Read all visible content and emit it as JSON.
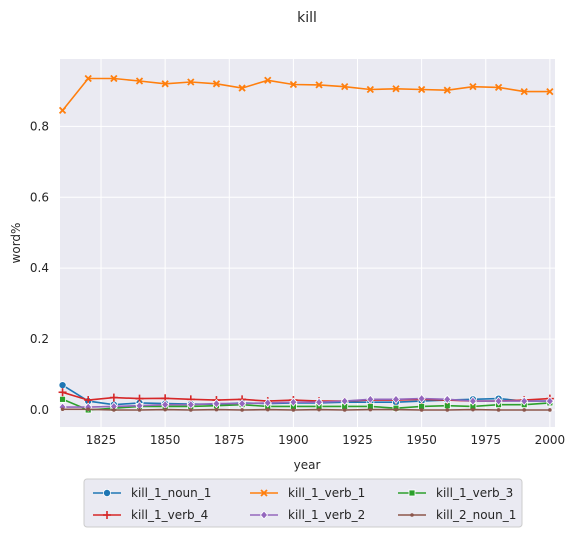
{
  "chart_data": {
    "type": "line",
    "title": "kill",
    "xlabel": "year",
    "ylabel": "word%",
    "xlim": [
      1809,
      2002
    ],
    "ylim": [
      -0.048,
      0.99
    ],
    "xticks": [
      1825,
      1850,
      1875,
      1900,
      1925,
      1950,
      1975,
      2000
    ],
    "yticks": [
      0.0,
      0.2,
      0.4,
      0.6,
      0.8
    ],
    "ytick_labels": [
      "0.0",
      "0.2",
      "0.4",
      "0.6",
      "0.8"
    ],
    "grid": true,
    "legend_position": "bottom-center",
    "x": [
      1810,
      1820,
      1830,
      1840,
      1850,
      1860,
      1870,
      1880,
      1890,
      1900,
      1910,
      1920,
      1930,
      1940,
      1950,
      1960,
      1970,
      1980,
      1990,
      2000
    ],
    "series": [
      {
        "name": "kill_1_noun_1",
        "color": "#1f77b4",
        "marker": "circle",
        "values": [
          0.07,
          0.025,
          0.015,
          0.02,
          0.018,
          0.017,
          0.016,
          0.02,
          0.018,
          0.02,
          0.02,
          0.022,
          0.022,
          0.022,
          0.025,
          0.028,
          0.03,
          0.032,
          0.025,
          0.025
        ]
      },
      {
        "name": "kill_1_verb_1",
        "color": "#ff7f0e",
        "marker": "x",
        "values": [
          0.845,
          0.935,
          0.935,
          0.928,
          0.92,
          0.925,
          0.92,
          0.908,
          0.93,
          0.918,
          0.917,
          0.912,
          0.904,
          0.906,
          0.904,
          0.902,
          0.912,
          0.91,
          0.898,
          0.898
        ]
      },
      {
        "name": "kill_1_verb_3",
        "color": "#2ca02c",
        "marker": "square",
        "values": [
          0.03,
          0.0,
          0.005,
          0.01,
          0.01,
          0.01,
          0.012,
          0.015,
          0.01,
          0.01,
          0.01,
          0.01,
          0.01,
          0.005,
          0.01,
          0.012,
          0.01,
          0.015,
          0.015,
          0.02
        ]
      },
      {
        "name": "kill_1_verb_4",
        "color": "#d62728",
        "marker": "plus",
        "values": [
          0.05,
          0.028,
          0.035,
          0.032,
          0.033,
          0.03,
          0.028,
          0.03,
          0.025,
          0.028,
          0.025,
          0.025,
          0.028,
          0.028,
          0.03,
          0.028,
          0.025,
          0.025,
          0.028,
          0.032
        ]
      },
      {
        "name": "kill_1_verb_2",
        "color": "#9467bd",
        "marker": "diamond",
        "values": [
          0.008,
          0.008,
          0.01,
          0.012,
          0.015,
          0.015,
          0.018,
          0.018,
          0.02,
          0.022,
          0.022,
          0.025,
          0.03,
          0.03,
          0.032,
          0.03,
          0.025,
          0.025,
          0.025,
          0.025
        ]
      },
      {
        "name": "kill_2_noun_1",
        "color": "#8c564b",
        "marker": "dot",
        "values": [
          0.002,
          0.002,
          0.0,
          0.0,
          0.001,
          0.0,
          0.001,
          0.0,
          0.001,
          0.0,
          0.001,
          0.0,
          0.001,
          0.001,
          0.0,
          0.0,
          0.001,
          0.0,
          0.0,
          0.0
        ]
      }
    ],
    "legend_order": [
      0,
      1,
      2,
      3,
      4,
      5
    ]
  }
}
